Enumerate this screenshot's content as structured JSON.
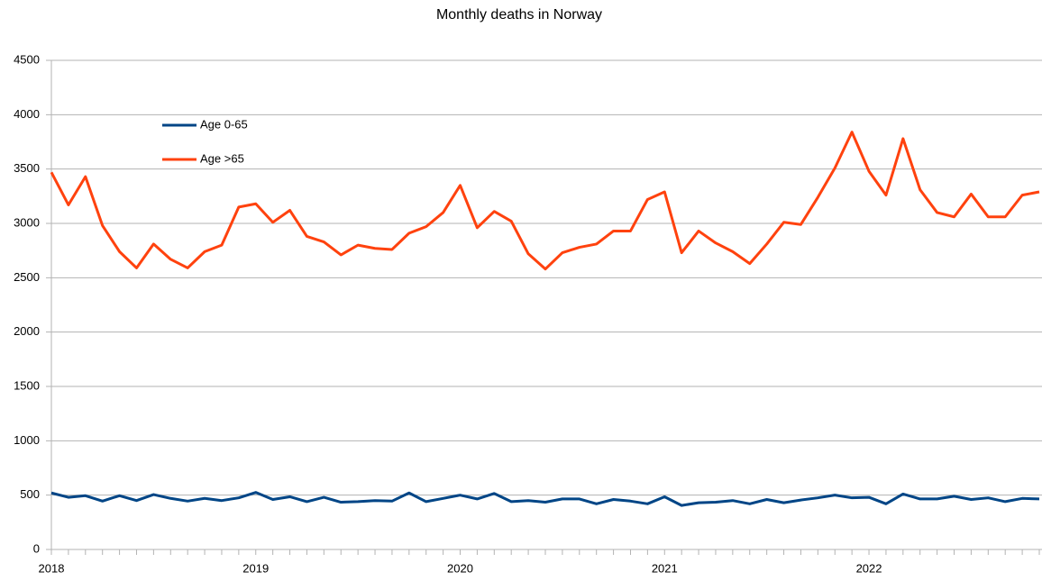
{
  "chart_data": {
    "type": "line",
    "title": "Monthly deaths in Norway",
    "categories": [
      "2018",
      null,
      null,
      null,
      null,
      null,
      null,
      null,
      null,
      null,
      null,
      null,
      "2019",
      null,
      null,
      null,
      null,
      null,
      null,
      null,
      null,
      null,
      null,
      null,
      "2020",
      null,
      null,
      null,
      null,
      null,
      null,
      null,
      null,
      null,
      null,
      null,
      "2021",
      null,
      null,
      null,
      null,
      null,
      null,
      null,
      null,
      null,
      null,
      null,
      "2022",
      null,
      null,
      null,
      null,
      null,
      null,
      null,
      null,
      null,
      null
    ],
    "series": [
      {
        "name": "Age 0-65",
        "color": "#004586",
        "values": [
          520,
          480,
          495,
          445,
          495,
          450,
          505,
          470,
          445,
          470,
          450,
          475,
          525,
          460,
          485,
          440,
          480,
          435,
          440,
          450,
          445,
          520,
          440,
          470,
          500,
          465,
          515,
          440,
          450,
          435,
          465,
          465,
          420,
          460,
          445,
          420,
          485,
          405,
          430,
          435,
          450,
          420,
          460,
          430,
          455,
          475,
          500,
          475,
          480,
          420,
          510,
          465,
          465,
          490,
          460,
          475,
          440,
          470,
          465
        ]
      },
      {
        "name": "Age >65",
        "color": "#ff420e",
        "values": [
          3470,
          3170,
          3430,
          2980,
          2740,
          2590,
          2810,
          2670,
          2590,
          2740,
          2800,
          3150,
          3180,
          3010,
          3120,
          2880,
          2830,
          2710,
          2800,
          2770,
          2760,
          2910,
          2970,
          3100,
          3350,
          2960,
          3110,
          3020,
          2720,
          2580,
          2730,
          2780,
          2810,
          2930,
          2930,
          3220,
          3290,
          2730,
          2930,
          2820,
          2740,
          2630,
          2810,
          3010,
          2990,
          3240,
          3510,
          3840,
          3480,
          3260,
          3780,
          3310,
          3100,
          3060,
          3270,
          3060,
          3060,
          3260,
          3290
        ]
      }
    ],
    "ylim": [
      0,
      4500
    ],
    "yticks": [
      0,
      500,
      1000,
      1500,
      2000,
      2500,
      3000,
      3500,
      4000,
      4500
    ],
    "grid": true,
    "legend": "upper-left"
  }
}
